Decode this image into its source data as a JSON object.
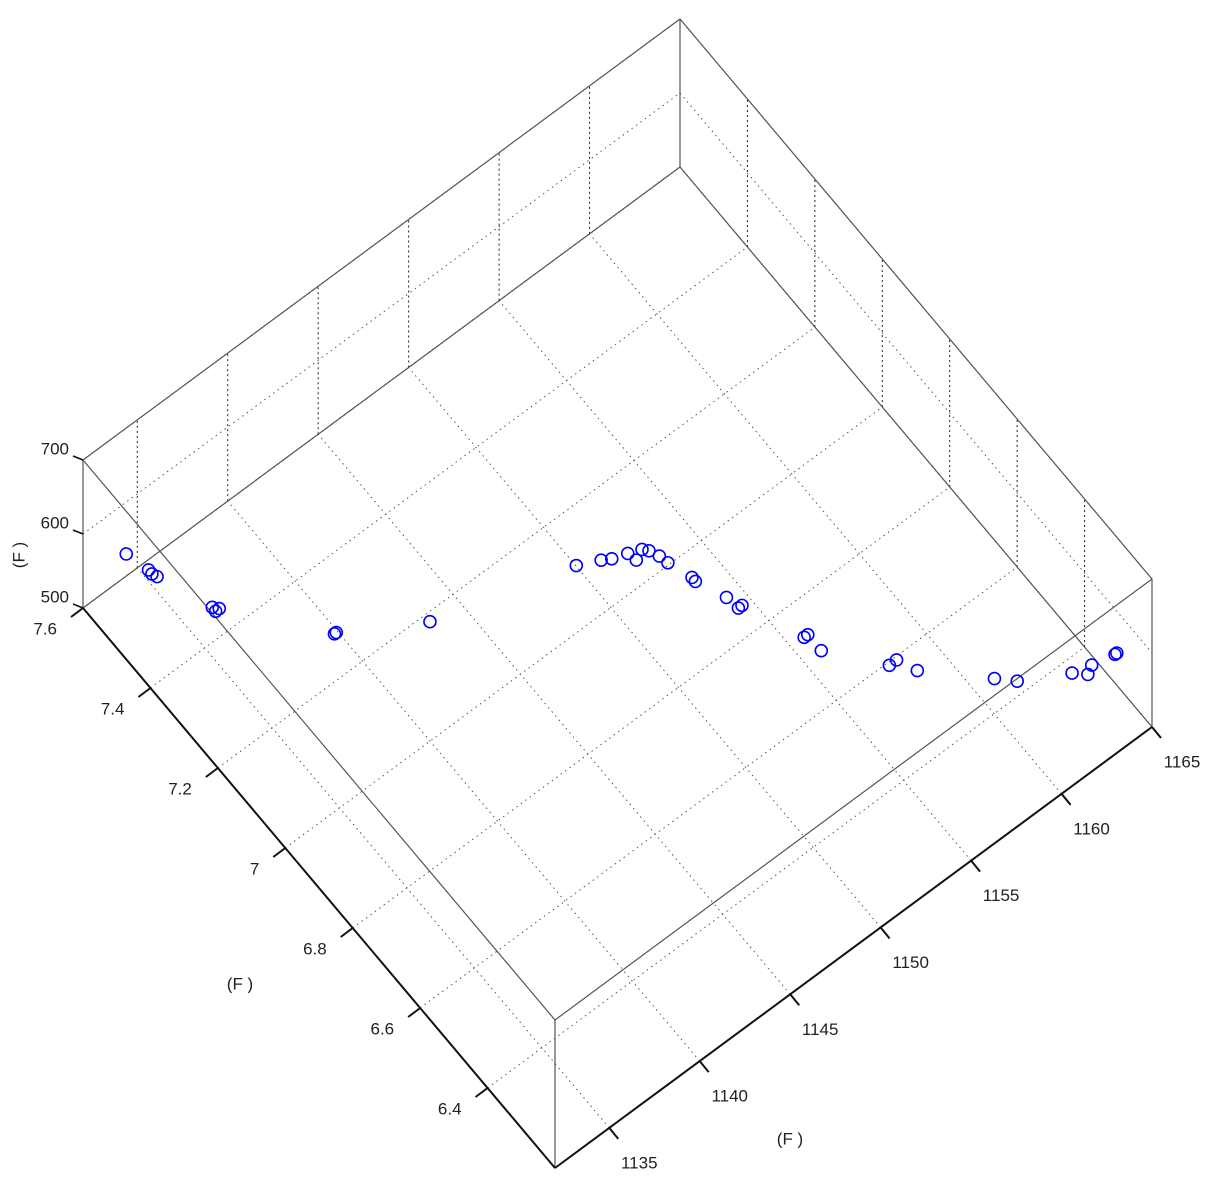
{
  "chart_data": {
    "type": "scatter3d",
    "xlabel": "(F   )",
    "ylabel": "(F   )",
    "zlabel": "(F   )",
    "xlim": [
      1132,
      1165
    ],
    "ylim": [
      6.2,
      7.6
    ],
    "zlim": [
      500,
      700
    ],
    "xticks": [
      1135,
      1140,
      1145,
      1150,
      1155,
      1160,
      1165
    ],
    "yticks": [
      6.4,
      6.6,
      6.8,
      7,
      7.2,
      7.4,
      7.6
    ],
    "zticks": [
      500,
      600,
      700
    ],
    "grid": true,
    "series": [
      {
        "color": "#0000ff",
        "x": [
          1132.9,
          1133.2,
          1133.2,
          1133.3,
          1134.3,
          1134.3,
          1134.5,
          1137.7,
          1137.8,
          1141.3,
          1147.9,
          1148.9,
          1149.3,
          1150.0,
          1150.1,
          1150.6,
          1150.8,
          1151.0,
          1151.1,
          1151.5,
          1151.5,
          1152.1,
          1152.2,
          1152.4,
          1153.6,
          1153.8,
          1153.8,
          1155.7,
          1156.1,
          1156.5,
          1158.9,
          1159.6,
          1161.7,
          1162.2,
          1162.6,
          1163.7,
          1163.8
        ],
        "y": [
          7.52,
          7.47,
          7.46,
          7.45,
          7.34,
          7.33,
          7.33,
          7.16,
          7.16,
          7.07,
          6.99,
          6.97,
          6.96,
          6.95,
          6.93,
          6.94,
          6.93,
          6.91,
          6.89,
          6.84,
          6.83,
          6.77,
          6.74,
          6.74,
          6.62,
          6.62,
          6.58,
          6.48,
          6.48,
          6.44,
          6.34,
          6.31,
          6.26,
          6.24,
          6.25,
          6.24,
          6.24
        ],
        "z": [
          600,
          600,
          600,
          600,
          600,
          600,
          600,
          600,
          600,
          600,
          600,
          600,
          600,
          600,
          600,
          600,
          600,
          600,
          600,
          600,
          600,
          600,
          600,
          600,
          600,
          600,
          600,
          600,
          600,
          600,
          600,
          600,
          600,
          600,
          600,
          600,
          600
        ]
      }
    ]
  }
}
